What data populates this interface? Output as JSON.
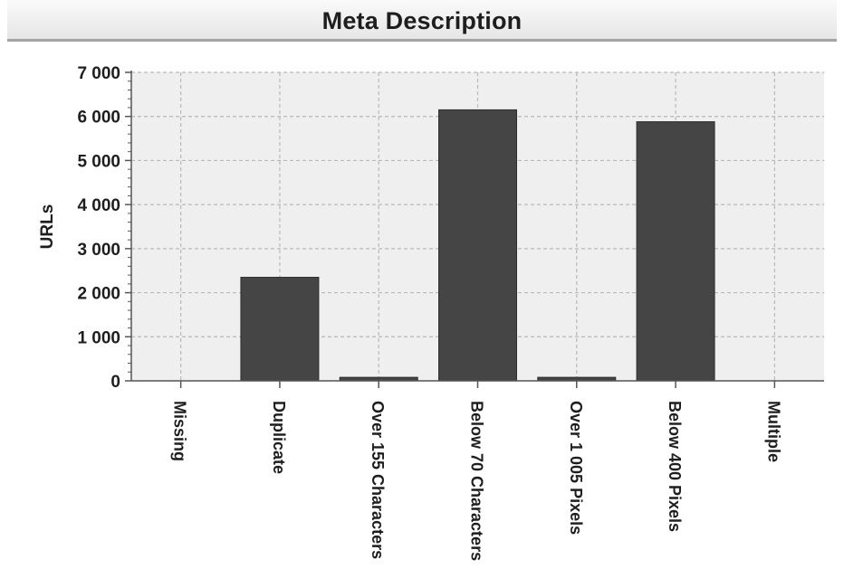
{
  "header": {
    "title": "Meta Description"
  },
  "chart_data": {
    "type": "bar",
    "title": "Meta Description",
    "xlabel": "",
    "ylabel": "URLs",
    "categories": [
      "Missing",
      "Duplicate",
      "Over 155 Characters",
      "Below 70 Characters",
      "Over 1 005 Pixels",
      "Below 400 Pixels",
      "Multiple"
    ],
    "values": [
      0,
      2350,
      80,
      6150,
      80,
      5880,
      0
    ],
    "ylim": [
      0,
      7000
    ],
    "yticks": [
      0,
      1000,
      2000,
      3000,
      4000,
      5000,
      6000,
      7000
    ],
    "ytick_labels": [
      "0",
      "1 000",
      "2 000",
      "3 000",
      "4 000",
      "5 000",
      "6 000",
      "7 000"
    ],
    "grid": true,
    "legend": "none",
    "colors": {
      "bar": "#454545",
      "plot_background": "#efefef",
      "grid": "#b8b8b8",
      "axis": "#555555"
    }
  }
}
